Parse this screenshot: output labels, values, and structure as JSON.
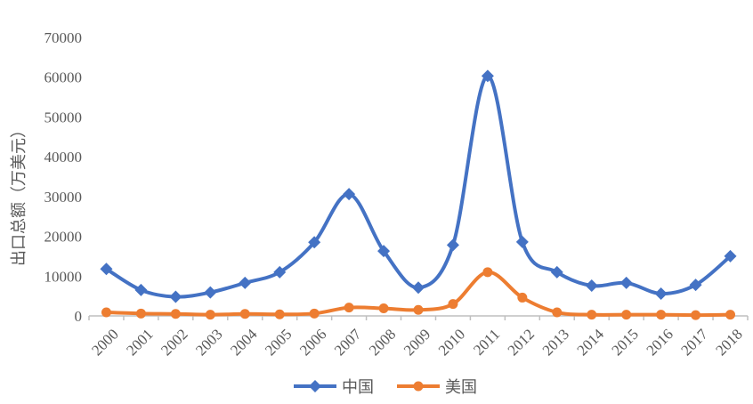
{
  "chart_data": {
    "type": "line",
    "title": "",
    "xlabel": "",
    "ylabel": "出口总额（万美元）",
    "ylim": [
      0,
      70000
    ],
    "yticks": [
      0,
      10000,
      20000,
      30000,
      40000,
      50000,
      60000,
      70000
    ],
    "ytick_labels": [
      "0",
      "10000",
      "20000",
      "30000",
      "40000",
      "50000",
      "60000",
      "70000"
    ],
    "categories": [
      "2000",
      "2001",
      "2002",
      "2003",
      "2004",
      "2005",
      "2006",
      "2007",
      "2008",
      "2009",
      "2010",
      "2011",
      "2012",
      "2013",
      "2014",
      "2015",
      "2016",
      "2017",
      "2018"
    ],
    "grid": false,
    "legend_position": "bottom",
    "smooth": true,
    "series": [
      {
        "name": "中国",
        "color": "#4472C4",
        "marker": "diamond",
        "values": [
          11800,
          6500,
          4800,
          5900,
          8300,
          11000,
          18500,
          30600,
          16300,
          7100,
          17800,
          60300,
          18600,
          11000,
          7600,
          8300,
          5600,
          7800,
          15000
        ]
      },
      {
        "name": "美国",
        "color": "#ED7D31",
        "marker": "circle",
        "values": [
          900,
          600,
          500,
          300,
          500,
          400,
          600,
          2100,
          1900,
          1500,
          3000,
          11000,
          4600,
          900,
          300,
          300,
          300,
          200,
          300
        ]
      }
    ]
  }
}
